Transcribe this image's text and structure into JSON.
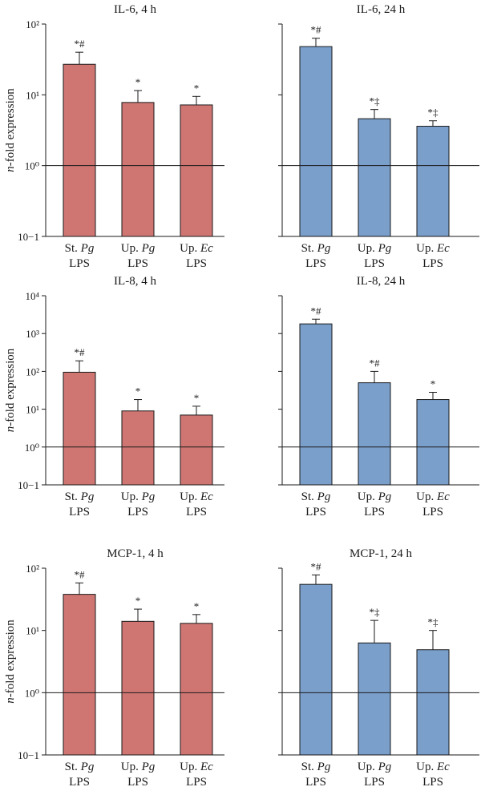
{
  "colors": {
    "red": "#CF7673",
    "blue": "#7A9FCB",
    "axis": "#1a1a1a"
  },
  "ylabel_parts": {
    "italic": "n",
    "rest": "-fold expression"
  },
  "xcats": [
    {
      "prefix": "St.",
      "species": "Pg",
      "line2": "LPS"
    },
    {
      "prefix": "Up.",
      "species": "Pg",
      "line2": "LPS"
    },
    {
      "prefix": "Up.",
      "species": "Ec",
      "line2": "LPS"
    }
  ],
  "chart_data": [
    {
      "type": "bar",
      "title": "IL-6, 4 h",
      "color": "red",
      "ylabel": "n-fold expression",
      "ylim": [
        0.1,
        100
      ],
      "log": true,
      "ticks": [
        "10−1",
        "10⁰",
        "10¹",
        "10²"
      ],
      "categories": [
        "St. Pg LPS",
        "Up. Pg LPS",
        "Up. Ec LPS"
      ],
      "values": [
        27,
        7.8,
        7.2
      ],
      "error_upper": [
        40,
        11.5,
        9.5
      ],
      "annotations": [
        "*#",
        "*",
        "*"
      ]
    },
    {
      "type": "bar",
      "title": "IL-6, 24 h",
      "color": "blue",
      "ylim": [
        0.1,
        100
      ],
      "log": true,
      "categories": [
        "St. Pg LPS",
        "Up. Pg LPS",
        "Up. Ec LPS"
      ],
      "values": [
        48,
        4.6,
        3.6
      ],
      "error_upper": [
        63,
        6.2,
        4.3
      ],
      "annotations": [
        "*#",
        "*‡",
        "*‡"
      ]
    },
    {
      "type": "bar",
      "title": "IL-8, 4 h",
      "color": "red",
      "ylabel": "n-fold expression",
      "ylim": [
        0.1,
        10000
      ],
      "log": true,
      "ticks": [
        "10−1",
        "10⁰",
        "10¹",
        "10²",
        "10³",
        "10⁴"
      ],
      "categories": [
        "St. Pg LPS",
        "Up. Pg LPS",
        "Up. Ec LPS"
      ],
      "values": [
        95,
        9,
        7
      ],
      "error_upper": [
        190,
        18,
        12
      ],
      "annotations": [
        "*#",
        "*",
        "*"
      ]
    },
    {
      "type": "bar",
      "title": "IL-8, 24 h",
      "color": "blue",
      "ylim": [
        0.1,
        10000
      ],
      "log": true,
      "categories": [
        "St. Pg LPS",
        "Up. Pg LPS",
        "Up. Ec LPS"
      ],
      "values": [
        1800,
        50,
        18
      ],
      "error_upper": [
        2400,
        100,
        28
      ],
      "annotations": [
        "*#",
        "*#",
        "*"
      ]
    },
    {
      "type": "bar",
      "title": "MCP-1, 4 h",
      "color": "red",
      "ylabel": "n-fold expression",
      "ylim": [
        0.1,
        100
      ],
      "log": true,
      "ticks": [
        "10−1",
        "10⁰",
        "10¹",
        "10²"
      ],
      "categories": [
        "St. Pg LPS",
        "Up. Pg LPS",
        "Up. Ec LPS"
      ],
      "values": [
        38,
        14,
        13
      ],
      "error_upper": [
        58,
        22,
        18
      ],
      "annotations": [
        "*#",
        "*",
        "*"
      ]
    },
    {
      "type": "bar",
      "title": "MCP-1, 24 h",
      "color": "blue",
      "ylim": [
        0.1,
        100
      ],
      "log": true,
      "categories": [
        "St. Pg LPS",
        "Up. Pg LPS",
        "Up. Ec LPS"
      ],
      "values": [
        55,
        6.3,
        4.9
      ],
      "error_upper": [
        78,
        14.5,
        10
      ],
      "annotations": [
        "*#",
        "*‡",
        "*‡"
      ]
    }
  ]
}
